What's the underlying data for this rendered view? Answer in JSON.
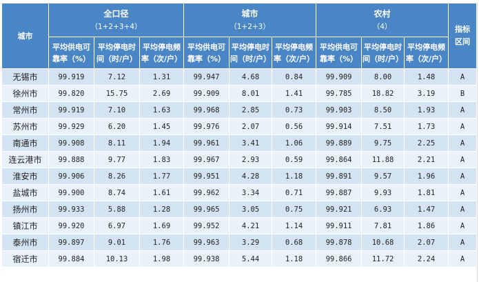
{
  "header": {
    "city_label": "城市",
    "indicator_label": "指标区间",
    "groups": [
      {
        "title": "全口径",
        "sub": "（1+2+3+4）"
      },
      {
        "title": "城市",
        "sub": "（1+2+3）"
      },
      {
        "title": "农村",
        "sub": "（4）"
      }
    ],
    "metrics": [
      {
        "line1": "平均供电可",
        "line2": "靠率（%）"
      },
      {
        "line1": "平均停电时",
        "line2": "间（时/户）"
      },
      {
        "line1": "平均停电频",
        "line2": "率（次/户）"
      }
    ]
  },
  "rows": [
    {
      "city": "无锡市",
      "values": [
        "99.919",
        "7.12",
        "1.31",
        "99.947",
        "4.68",
        "0.84",
        "99.909",
        "8.00",
        "1.48"
      ],
      "level": "A"
    },
    {
      "city": "徐州市",
      "values": [
        "99.820",
        "15.75",
        "2.69",
        "99.909",
        "8.01",
        "1.41",
        "99.785",
        "18.82",
        "3.19"
      ],
      "level": "B"
    },
    {
      "city": "常州市",
      "values": [
        "99.919",
        "7.10",
        "1.63",
        "99.968",
        "2.85",
        "0.73",
        "99.903",
        "8.50",
        "1.93"
      ],
      "level": "A"
    },
    {
      "city": "苏州市",
      "values": [
        "99.929",
        "6.20",
        "1.45",
        "99.976",
        "2.07",
        "0.56",
        "99.914",
        "7.51",
        "1.73"
      ],
      "level": "A"
    },
    {
      "city": "南通市",
      "values": [
        "99.908",
        "8.11",
        "1.94",
        "99.961",
        "3.41",
        "1.06",
        "99.889",
        "9.75",
        "2.25"
      ],
      "level": "A"
    },
    {
      "city": "连云港市",
      "values": [
        "99.888",
        "9.77",
        "1.83",
        "99.967",
        "2.93",
        "0.59",
        "99.864",
        "11.88",
        "2.21"
      ],
      "level": "A"
    },
    {
      "city": "淮安市",
      "values": [
        "99.906",
        "8.26",
        "1.77",
        "99.951",
        "4.28",
        "1.18",
        "99.891",
        "9.57",
        "1.96"
      ],
      "level": "A"
    },
    {
      "city": "盐城市",
      "values": [
        "99.900",
        "8.74",
        "1.61",
        "99.962",
        "3.34",
        "0.71",
        "99.887",
        "9.93",
        "1.81"
      ],
      "level": "A"
    },
    {
      "city": "扬州市",
      "values": [
        "99.933",
        "5.88",
        "1.28",
        "99.965",
        "3.05",
        "0.75",
        "99.921",
        "6.93",
        "1.47"
      ],
      "level": "A"
    },
    {
      "city": "镇江市",
      "values": [
        "99.920",
        "6.97",
        "1.69",
        "99.952",
        "4.21",
        "1.14",
        "99.911",
        "7.81",
        "1.86"
      ],
      "level": "A"
    },
    {
      "city": "泰州市",
      "values": [
        "99.897",
        "9.01",
        "1.76",
        "99.963",
        "3.29",
        "0.68",
        "99.878",
        "10.68",
        "2.07"
      ],
      "level": "A"
    },
    {
      "city": "宿迁市",
      "values": [
        "99.884",
        "10.13",
        "1.98",
        "99.938",
        "5.44",
        "1.18",
        "99.866",
        "11.72",
        "2.24"
      ],
      "level": "A"
    }
  ]
}
